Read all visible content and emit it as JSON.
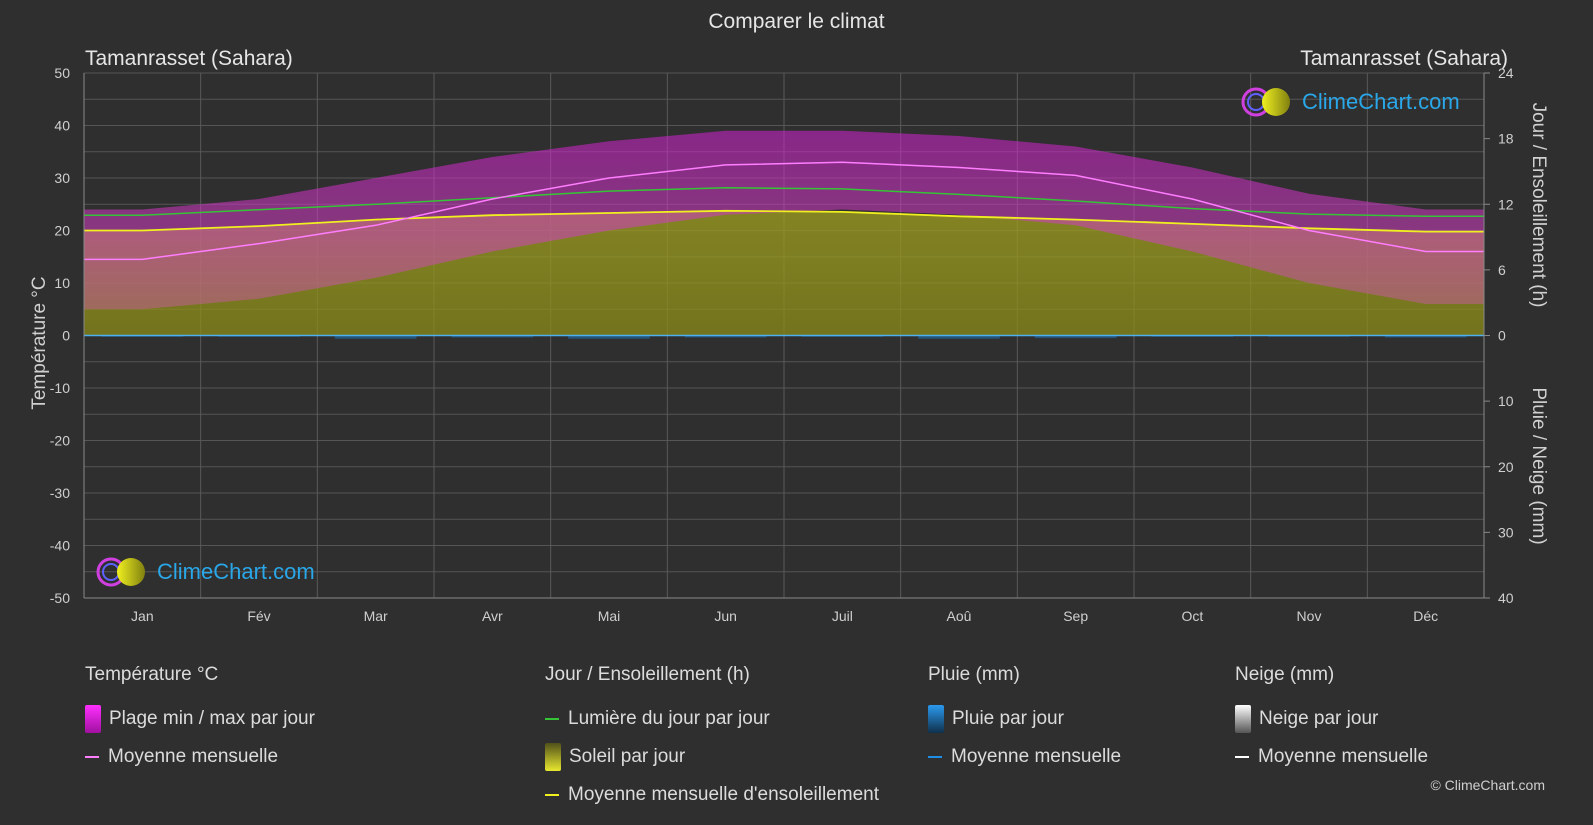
{
  "title": "Comparer le climat",
  "location_left": "Tamanrasset (Sahara)",
  "location_right": "Tamanrasset (Sahara)",
  "copyright": "© ClimeChart.com",
  "logo_text": "ClimeChart.com",
  "colors": {
    "temp_range": "#e020e0",
    "temp_mean": "#ff7dff",
    "daylight": "#35c435",
    "sunshine": "#b4b420",
    "sunshine_mean": "#f0f020",
    "rain": "#1e8ee6",
    "snow": "#ffffff"
  },
  "legend": {
    "temp": {
      "heading": "Température °C",
      "range": "Plage min / max par jour",
      "mean": "Moyenne mensuelle"
    },
    "sun": {
      "heading": "Jour / Ensoleillement (h)",
      "daylight": "Lumière du jour par jour",
      "sunshine": "Soleil par jour",
      "sunshine_mean": "Moyenne mensuelle d'ensoleillement"
    },
    "rain": {
      "heading": "Pluie (mm)",
      "daily": "Pluie par jour",
      "mean": "Moyenne mensuelle"
    },
    "snow": {
      "heading": "Neige (mm)",
      "daily": "Neige par jour",
      "mean": "Moyenne mensuelle"
    }
  },
  "chart_data": {
    "type": "area",
    "title": "Comparer le climat",
    "categories": [
      "Jan",
      "Fév",
      "Mar",
      "Avr",
      "Mai",
      "Jun",
      "Juil",
      "Aoû",
      "Sep",
      "Oct",
      "Nov",
      "Déc"
    ],
    "y_left": {
      "label": "Température °C",
      "ylim": [
        -50,
        50
      ],
      "ticks": [
        50,
        40,
        30,
        20,
        10,
        0,
        -10,
        -20,
        -30,
        -40,
        -50
      ]
    },
    "y_right_top": {
      "label": "Jour / Ensoleillement (h)",
      "ylim": [
        0,
        24
      ],
      "ticks": [
        24,
        18,
        12,
        6,
        0
      ]
    },
    "y_right_bottom": {
      "label": "Pluie / Neige (mm)",
      "ylim": [
        0,
        40
      ],
      "ticks": [
        0,
        10,
        20,
        30,
        40
      ]
    },
    "grid": true,
    "series": [
      {
        "name": "Plage min / max par jour (max)",
        "axis": "temp",
        "values": [
          24,
          26,
          30,
          34,
          37,
          39,
          39,
          38,
          36,
          32,
          27,
          24
        ]
      },
      {
        "name": "Plage min / max par jour (min)",
        "axis": "temp",
        "values": [
          5,
          7,
          11,
          16,
          20,
          23,
          24,
          23,
          21,
          16,
          10,
          6
        ]
      },
      {
        "name": "Moyenne mensuelle",
        "axis": "temp",
        "values": [
          14.5,
          17.5,
          21,
          26,
          30,
          32.5,
          33,
          32,
          30.5,
          26,
          20,
          16
        ]
      },
      {
        "name": "Lumière du jour par jour",
        "axis": "sun",
        "values": [
          11.0,
          11.5,
          12.0,
          12.6,
          13.2,
          13.5,
          13.4,
          12.9,
          12.3,
          11.6,
          11.1,
          10.9
        ]
      },
      {
        "name": "Soleil par jour",
        "axis": "sun",
        "values": [
          9.6,
          10.0,
          10.6,
          11.0,
          11.2,
          11.4,
          11.3,
          10.9,
          10.6,
          10.2,
          9.8,
          9.5
        ]
      },
      {
        "name": "Moyenne mensuelle d'ensoleillement",
        "axis": "sun",
        "values": [
          9.6,
          10.0,
          10.6,
          11.0,
          11.2,
          11.4,
          11.3,
          10.9,
          10.6,
          10.2,
          9.8,
          9.5
        ]
      },
      {
        "name": "Pluie par jour",
        "axis": "rain",
        "values": [
          0.2,
          0.2,
          0.5,
          0.3,
          0.5,
          0.3,
          0.2,
          0.5,
          0.4,
          0.2,
          0.2,
          0.3
        ]
      },
      {
        "name": "Moyenne mensuelle (pluie)",
        "axis": "rain",
        "values": [
          0.0,
          0.0,
          0.1,
          0.0,
          0.1,
          0.1,
          0.0,
          0.1,
          0.1,
          0.0,
          0.0,
          0.0
        ]
      }
    ]
  }
}
